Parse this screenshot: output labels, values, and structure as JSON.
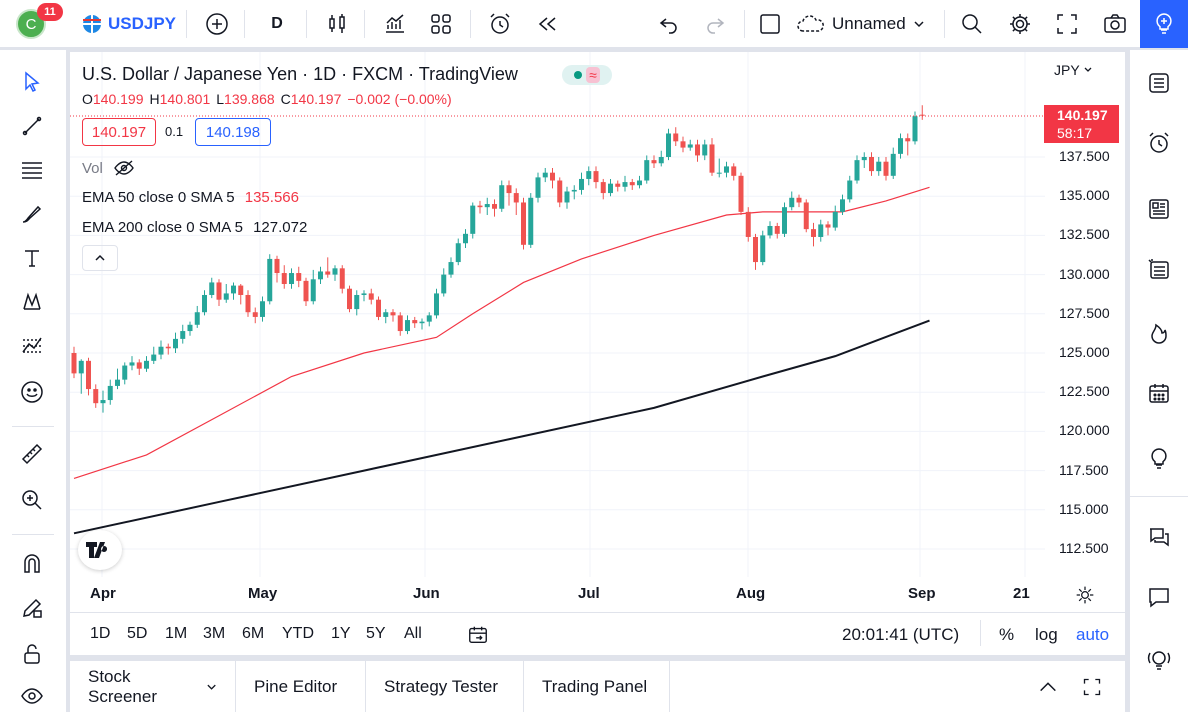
{
  "topbar": {
    "avatar_letter": "C",
    "notification_count": "11",
    "symbol": "USDJPY",
    "interval": "D",
    "layout_name": "Unnamed"
  },
  "legend": {
    "title": "U.S. Dollar / Japanese Yen · 1D · FXCM · TradingView",
    "o_label": "O",
    "o": "140.199",
    "h_label": "H",
    "h": "140.801",
    "l_label": "L",
    "l": "139.868",
    "c_label": "C",
    "c": "140.197",
    "change": "−0.002 (−0.00%)",
    "sell_price": "140.197",
    "spread": "0.1",
    "buy_price": "140.198",
    "vol_label": "Vol",
    "ema50_label": "EMA 50 close 0 SMA 5",
    "ema50_value": "135.566",
    "ema200_label": "EMA 200 close 0 SMA 5",
    "ema200_value": "127.072"
  },
  "currency": "JPY",
  "last_price": "140.197",
  "countdown": "58:17",
  "price_axis": [
    "137.500",
    "135.000",
    "132.500",
    "130.000",
    "127.500",
    "125.000",
    "122.500",
    "120.000",
    "117.500",
    "115.000",
    "112.500"
  ],
  "time_axis": [
    "Apr",
    "May",
    "Jun",
    "Jul",
    "Aug",
    "Sep",
    "21"
  ],
  "periods": [
    "1D",
    "5D",
    "1M",
    "3M",
    "6M",
    "YTD",
    "1Y",
    "5Y",
    "All"
  ],
  "clock": "20:01:41 (UTC)",
  "scale_buttons": {
    "percent": "%",
    "log": "log",
    "auto": "auto"
  },
  "bottom_tabs": [
    "Stock Screener",
    "Pine Editor",
    "Strategy Tester",
    "Trading Panel"
  ],
  "colors": {
    "up": "#26a69a",
    "down": "#ef5350",
    "ema50": "#f23645",
    "ema200": "#131722",
    "accent": "#2962ff"
  },
  "chart_data": {
    "type": "candlestick",
    "ylim": [
      111.5,
      142.5
    ],
    "candles": [
      [
        125.0,
        123.7,
        125.4,
        123.4
      ],
      [
        123.7,
        124.5,
        124.6,
        122.4
      ],
      [
        124.5,
        122.7,
        124.7,
        122.3
      ],
      [
        122.7,
        121.8,
        123.0,
        121.5
      ],
      [
        121.8,
        122.0,
        122.6,
        121.2
      ],
      [
        122.0,
        122.9,
        123.3,
        121.7
      ],
      [
        122.9,
        123.3,
        124.0,
        122.7
      ],
      [
        123.3,
        124.2,
        124.4,
        123.0
      ],
      [
        124.2,
        124.4,
        124.8,
        123.9
      ],
      [
        124.4,
        124.0,
        124.6,
        123.6
      ],
      [
        124.0,
        124.5,
        124.8,
        123.8
      ],
      [
        124.5,
        124.9,
        125.4,
        124.3
      ],
      [
        124.9,
        125.4,
        125.8,
        124.6
      ],
      [
        125.4,
        125.3,
        125.6,
        124.9
      ],
      [
        125.3,
        125.9,
        126.3,
        125.0
      ],
      [
        125.9,
        126.4,
        126.8,
        125.6
      ],
      [
        126.4,
        126.8,
        127.0,
        126.1
      ],
      [
        126.8,
        127.6,
        128.0,
        126.6
      ],
      [
        127.6,
        128.7,
        129.0,
        127.4
      ],
      [
        128.7,
        129.5,
        129.8,
        128.5
      ],
      [
        129.5,
        128.4,
        129.7,
        128.0
      ],
      [
        128.4,
        128.8,
        129.4,
        128.2
      ],
      [
        128.8,
        129.3,
        129.5,
        128.4
      ],
      [
        129.3,
        128.7,
        129.4,
        128.1
      ],
      [
        128.7,
        127.6,
        129.0,
        127.3
      ],
      [
        127.6,
        127.3,
        127.9,
        126.9
      ],
      [
        127.3,
        128.3,
        128.6,
        127.0
      ],
      [
        128.3,
        131.0,
        131.3,
        128.1
      ],
      [
        131.0,
        130.1,
        131.2,
        129.5
      ],
      [
        130.1,
        129.4,
        130.6,
        129.1
      ],
      [
        129.4,
        130.1,
        130.4,
        129.1
      ],
      [
        130.1,
        129.6,
        130.5,
        129.2
      ],
      [
        129.6,
        128.3,
        129.8,
        128.0
      ],
      [
        128.3,
        129.7,
        130.3,
        128.1
      ],
      [
        129.7,
        130.2,
        130.5,
        129.4
      ],
      [
        130.2,
        130.0,
        131.1,
        129.8
      ],
      [
        130.0,
        130.4,
        130.6,
        129.6
      ],
      [
        130.4,
        129.1,
        130.6,
        128.8
      ],
      [
        129.1,
        127.8,
        129.3,
        127.6
      ],
      [
        127.8,
        128.7,
        129.0,
        127.4
      ],
      [
        128.7,
        128.8,
        129.0,
        128.3
      ],
      [
        128.8,
        128.4,
        129.1,
        128.1
      ],
      [
        128.4,
        127.3,
        128.6,
        127.1
      ],
      [
        127.3,
        127.6,
        127.8,
        126.9
      ],
      [
        127.6,
        127.4,
        127.8,
        127.0
      ],
      [
        127.4,
        126.4,
        127.6,
        126.1
      ],
      [
        126.4,
        127.1,
        127.4,
        126.2
      ],
      [
        127.1,
        126.9,
        127.3,
        126.6
      ],
      [
        126.9,
        127.0,
        127.2,
        126.5
      ],
      [
        127.0,
        127.4,
        127.6,
        126.7
      ],
      [
        127.4,
        128.8,
        129.1,
        127.2
      ],
      [
        128.8,
        130.0,
        130.4,
        128.6
      ],
      [
        130.0,
        130.8,
        131.1,
        129.8
      ],
      [
        130.8,
        132.0,
        132.3,
        130.6
      ],
      [
        132.0,
        132.6,
        132.9,
        131.7
      ],
      [
        132.6,
        134.4,
        134.6,
        132.3
      ],
      [
        134.4,
        134.3,
        134.7,
        133.9
      ],
      [
        134.3,
        134.5,
        134.9,
        133.8
      ],
      [
        134.5,
        134.2,
        134.8,
        133.7
      ],
      [
        134.2,
        135.7,
        136.0,
        134.0
      ],
      [
        135.7,
        135.2,
        136.0,
        134.4
      ],
      [
        135.2,
        134.6,
        135.5,
        133.8
      ],
      [
        134.6,
        131.9,
        134.9,
        131.6
      ],
      [
        131.9,
        134.9,
        135.2,
        131.7
      ],
      [
        134.9,
        136.2,
        136.5,
        134.6
      ],
      [
        136.2,
        136.5,
        136.8,
        135.9
      ],
      [
        136.5,
        136.0,
        136.8,
        135.5
      ],
      [
        136.0,
        134.6,
        136.2,
        134.3
      ],
      [
        134.6,
        135.3,
        135.6,
        134.2
      ],
      [
        135.3,
        135.4,
        135.7,
        134.8
      ],
      [
        135.4,
        136.1,
        136.5,
        135.1
      ],
      [
        136.1,
        136.6,
        136.9,
        135.7
      ],
      [
        136.6,
        135.9,
        136.9,
        135.5
      ],
      [
        135.9,
        135.2,
        136.1,
        134.8
      ],
      [
        135.2,
        135.8,
        136.1,
        135.0
      ],
      [
        135.8,
        135.6,
        136.0,
        135.3
      ],
      [
        135.6,
        135.9,
        136.3,
        135.3
      ],
      [
        135.9,
        135.7,
        136.1,
        135.4
      ],
      [
        135.7,
        136.0,
        136.3,
        135.5
      ],
      [
        136.0,
        137.3,
        137.6,
        135.8
      ],
      [
        137.3,
        137.1,
        137.6,
        136.8
      ],
      [
        137.1,
        137.5,
        137.9,
        136.9
      ],
      [
        137.5,
        139.0,
        139.3,
        137.3
      ],
      [
        139.0,
        138.5,
        139.4,
        138.2
      ],
      [
        138.5,
        138.1,
        138.8,
        137.8
      ],
      [
        138.1,
        138.3,
        138.6,
        137.9
      ],
      [
        138.3,
        137.6,
        138.6,
        137.2
      ],
      [
        137.6,
        138.3,
        138.6,
        137.3
      ],
      [
        138.3,
        136.5,
        138.7,
        136.3
      ],
      [
        136.5,
        136.5,
        137.4,
        136.2
      ],
      [
        136.5,
        136.9,
        137.2,
        136.2
      ],
      [
        136.9,
        136.3,
        137.1,
        136.0
      ],
      [
        136.3,
        134.0,
        136.5,
        133.8
      ],
      [
        134.0,
        132.4,
        134.3,
        132.1
      ],
      [
        132.4,
        130.8,
        132.6,
        130.3
      ],
      [
        130.8,
        132.5,
        132.8,
        130.6
      ],
      [
        132.5,
        133.1,
        133.4,
        132.3
      ],
      [
        133.1,
        132.6,
        133.3,
        132.3
      ],
      [
        132.6,
        134.3,
        134.6,
        132.4
      ],
      [
        134.3,
        134.9,
        135.3,
        134.1
      ],
      [
        134.9,
        134.6,
        135.1,
        134.3
      ],
      [
        134.6,
        132.9,
        134.8,
        132.7
      ],
      [
        132.9,
        132.4,
        133.3,
        131.8
      ],
      [
        132.4,
        133.2,
        133.5,
        132.1
      ],
      [
        133.2,
        133.0,
        133.4,
        132.5
      ],
      [
        133.0,
        134.0,
        134.4,
        132.8
      ],
      [
        134.0,
        134.8,
        135.1,
        133.8
      ],
      [
        134.8,
        136.0,
        136.3,
        134.6
      ],
      [
        136.0,
        137.3,
        137.6,
        135.8
      ],
      [
        137.3,
        137.5,
        137.8,
        136.8
      ],
      [
        137.5,
        136.6,
        137.8,
        136.3
      ],
      [
        136.6,
        137.2,
        137.5,
        136.3
      ],
      [
        137.2,
        136.3,
        137.5,
        136.0
      ],
      [
        136.3,
        137.7,
        138.1,
        136.1
      ],
      [
        137.7,
        138.7,
        139.0,
        137.4
      ],
      [
        138.7,
        138.5,
        139.0,
        137.6
      ],
      [
        138.5,
        140.1,
        140.4,
        138.3
      ],
      [
        140.199,
        140.197,
        140.801,
        139.868
      ]
    ],
    "ema50": [
      [
        0,
        117.0
      ],
      [
        10,
        118.5
      ],
      [
        20,
        121.0
      ],
      [
        30,
        123.5
      ],
      [
        40,
        125.0
      ],
      [
        50,
        126.0
      ],
      [
        55,
        127.5
      ],
      [
        62,
        129.5
      ],
      [
        70,
        131.0
      ],
      [
        80,
        132.5
      ],
      [
        90,
        133.8
      ],
      [
        95,
        134.0
      ],
      [
        100,
        134.0
      ],
      [
        106,
        134.0
      ],
      [
        112,
        134.7
      ],
      [
        118,
        135.566
      ]
    ],
    "ema200": [
      [
        0,
        113.5
      ],
      [
        20,
        115.5
      ],
      [
        40,
        117.5
      ],
      [
        60,
        119.5
      ],
      [
        80,
        121.5
      ],
      [
        95,
        123.5
      ],
      [
        105,
        124.8
      ],
      [
        118,
        127.072
      ]
    ]
  }
}
